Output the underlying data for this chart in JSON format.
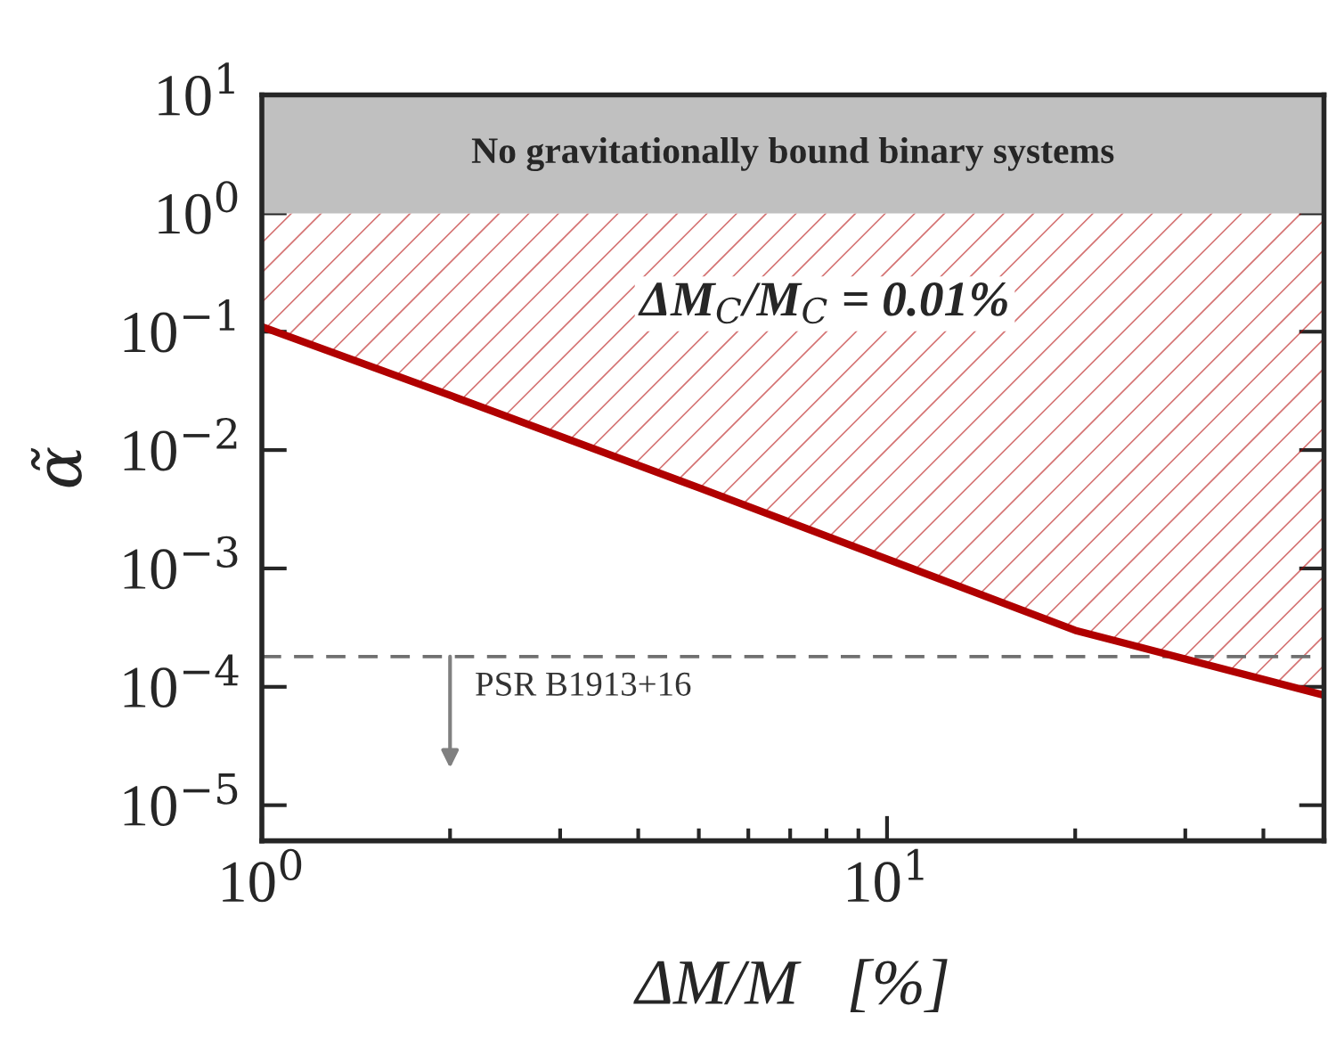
{
  "chart_data": {
    "type": "line",
    "xlabel": "ΔM/M   [%]",
    "ylabel": "α̃",
    "log": "xy",
    "xlim": [
      1,
      50
    ],
    "ylim": [
      5e-06,
      10
    ],
    "xticks": [
      {
        "value": 1,
        "label": "10$^{0}$"
      },
      {
        "value": 10,
        "label": "10$^{1}$"
      }
    ],
    "yticks": [
      {
        "value": 1e-05,
        "label": "10$^{−5}$"
      },
      {
        "value": 0.0001,
        "label": "10$^{−4}$"
      },
      {
        "value": 0.001,
        "label": "10$^{−3}$"
      },
      {
        "value": 0.01,
        "label": "10$^{−2}$"
      },
      {
        "value": 0.1,
        "label": "10$^{−1}$"
      },
      {
        "value": 1,
        "label": "10$^{0}$"
      },
      {
        "value": 10,
        "label": "10$^{1}$"
      }
    ],
    "series": [
      {
        "color": "#b00000",
        "x": [
          1,
          2,
          5,
          10,
          20,
          50
        ],
        "values": [
          0.11,
          0.029,
          0.0048,
          0.0012,
          0.0003,
          8.5e-05
        ],
        "lower": [
          0.11,
          0.029,
          0.0048,
          0.0012,
          0.0003,
          8.5e-05
        ],
        "upper": [
          1,
          1,
          1,
          1,
          1,
          1
        ]
      }
    ],
    "bands": [
      {
        "axis": "y",
        "from": 1,
        "to": 10,
        "label": "No gravitationally bound binary systems",
        "color": "#c0c0c0"
      }
    ],
    "ref_lines": [
      {
        "axis": "y",
        "value": 0.00018,
        "color": "#707070",
        "line_style": "dashed"
      }
    ],
    "annotations": [
      {
        "text": "PSR B1913+16",
        "x": 2,
        "y": 0.00018
      },
      "ΔM$_{C}$/M$_{C}$ = 0.01%"
    ],
    "legend": false,
    "grid": false,
    "line_style": "solid",
    "marker": "none"
  }
}
